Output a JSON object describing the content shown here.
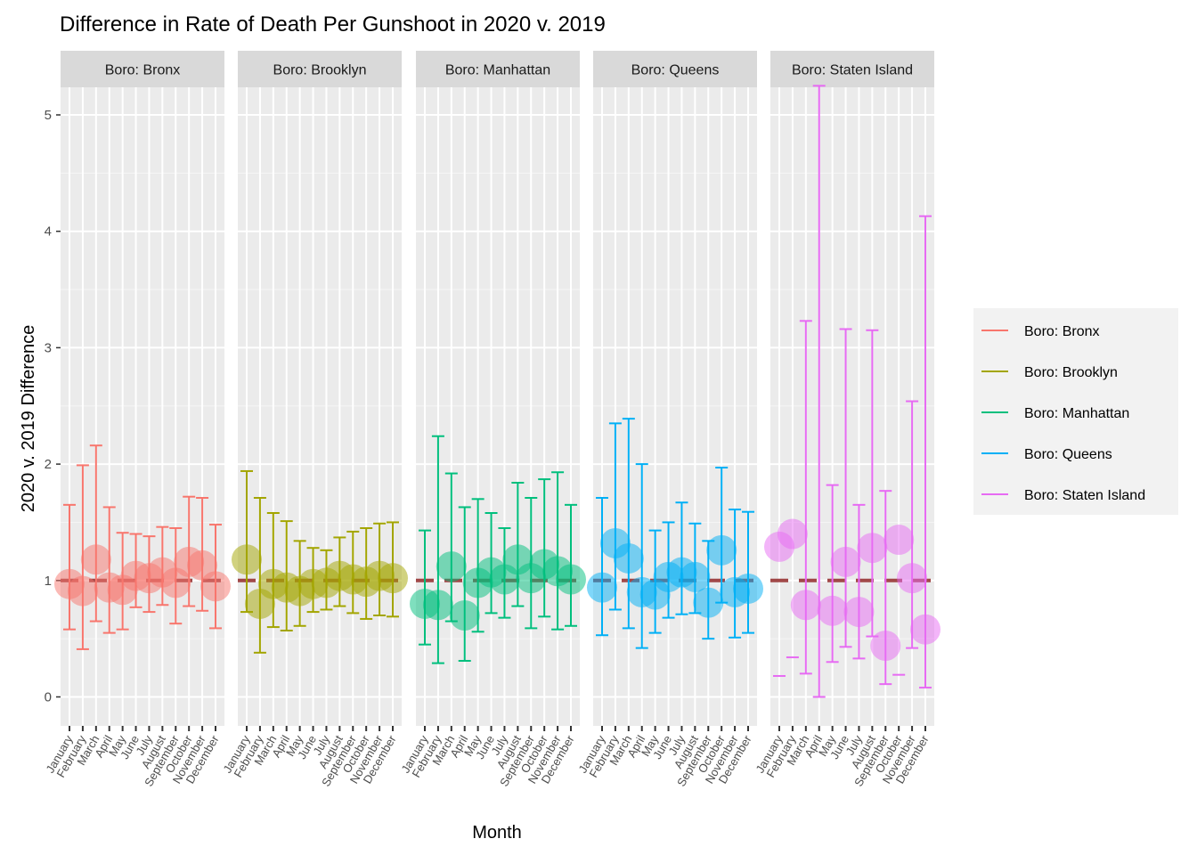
{
  "chart_data": {
    "type": "scatter",
    "title": "Difference in Rate of Death Per Gunshoot in 2020 v. 2019",
    "xlabel": "Month",
    "ylabel": "2020 v. 2019 Difference",
    "ylim": [
      -0.25,
      5.25
    ],
    "yticks": [
      0,
      1,
      2,
      3,
      4,
      5
    ],
    "reference_line": 1,
    "grid": true,
    "legend_position": "right",
    "facet_layout": "1 row x 5 columns, shared y axis",
    "months": [
      "January",
      "February",
      "March",
      "April",
      "May",
      "June",
      "July",
      "August",
      "September",
      "October",
      "November",
      "December"
    ],
    "series": [
      {
        "name": "Boro: Bronx",
        "color": "#F8766D",
        "estimate": [
          0.97,
          0.91,
          1.18,
          0.94,
          0.92,
          1.04,
          1.02,
          1.07,
          0.98,
          1.16,
          1.13,
          0.95
        ],
        "lower": [
          0.58,
          0.41,
          0.65,
          0.55,
          0.58,
          0.77,
          0.73,
          0.79,
          0.63,
          0.78,
          0.74,
          0.59
        ],
        "upper": [
          1.65,
          1.99,
          2.16,
          1.63,
          1.41,
          1.4,
          1.38,
          1.46,
          1.45,
          1.72,
          1.71,
          1.48
        ]
      },
      {
        "name": "Boro: Brooklyn",
        "color": "#A3A500",
        "estimate": [
          1.18,
          0.8,
          0.97,
          0.94,
          0.91,
          0.97,
          0.98,
          1.04,
          1.01,
          0.99,
          1.04,
          1.02
        ],
        "lower": [
          0.73,
          0.38,
          0.6,
          0.57,
          0.61,
          0.73,
          0.75,
          0.78,
          0.72,
          0.67,
          0.7,
          0.69
        ],
        "upper": [
          1.94,
          1.71,
          1.58,
          1.51,
          1.34,
          1.28,
          1.26,
          1.37,
          1.42,
          1.45,
          1.49,
          1.5
        ]
      },
      {
        "name": "Boro: Manhattan",
        "color": "#00BF7D",
        "estimate": [
          0.8,
          0.79,
          1.12,
          0.7,
          0.98,
          1.07,
          1.01,
          1.18,
          1.02,
          1.14,
          1.08,
          1.01
        ],
        "lower": [
          0.45,
          0.29,
          0.65,
          0.31,
          0.56,
          0.72,
          0.68,
          0.78,
          0.59,
          0.69,
          0.58,
          0.61
        ],
        "upper": [
          1.43,
          2.24,
          1.92,
          1.63,
          1.7,
          1.58,
          1.45,
          1.84,
          1.71,
          1.87,
          1.93,
          1.65
        ]
      },
      {
        "name": "Boro: Queens",
        "color": "#00B0F6",
        "estimate": [
          0.94,
          1.32,
          1.19,
          0.9,
          0.88,
          1.03,
          1.07,
          1.03,
          0.81,
          1.26,
          0.9,
          0.93
        ],
        "lower": [
          0.53,
          0.75,
          0.59,
          0.42,
          0.55,
          0.68,
          0.71,
          0.72,
          0.5,
          0.81,
          0.51,
          0.55
        ],
        "upper": [
          1.71,
          2.35,
          2.39,
          2.0,
          1.43,
          1.5,
          1.67,
          1.49,
          1.34,
          1.97,
          1.61,
          1.59
        ]
      },
      {
        "name": "Boro: Staten Island",
        "color": "#E76BF3",
        "estimate": [
          1.29,
          1.4,
          0.79,
          null,
          0.74,
          1.16,
          0.73,
          1.28,
          0.44,
          1.35,
          1.02,
          0.58
        ],
        "lower": [
          0.18,
          0.34,
          0.2,
          0.0,
          0.3,
          0.43,
          0.33,
          0.52,
          0.11,
          0.19,
          0.42,
          0.08
        ],
        "upper": [
          null,
          null,
          3.23,
          5.25,
          1.82,
          3.16,
          1.65,
          3.15,
          1.77,
          null,
          2.54,
          4.13
        ]
      }
    ]
  }
}
